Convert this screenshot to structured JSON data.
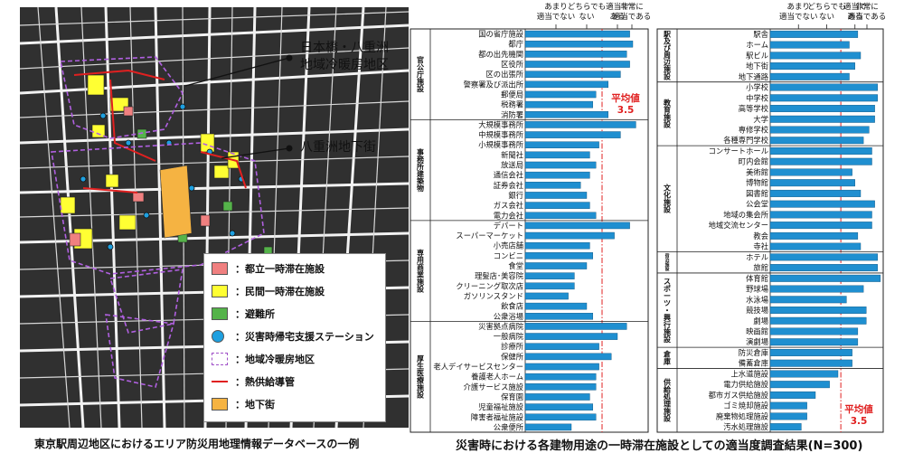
{
  "map": {
    "callouts": [
      "日本橋・八重洲",
      "地域冷暖房地区",
      "八重洲地下街"
    ],
    "legend": [
      {
        "label": "：都立一時滞在施設",
        "color": "#f08080",
        "shape": "box"
      },
      {
        "label": "：民間一時滞在施設",
        "color": "#ffff33",
        "shape": "box"
      },
      {
        "label": "：避難所",
        "color": "#55b34a",
        "shape": "box"
      },
      {
        "label": "：災害時帰宅支援ステーション",
        "color": "#1ea0e0",
        "shape": "circle"
      },
      {
        "label": "：地域冷暖房地区",
        "color": "#a050c8",
        "shape": "dashed-box"
      },
      {
        "label": "：熱供給導管",
        "color": "#e02020",
        "shape": "line"
      },
      {
        "label": "：地下街",
        "color": "#f5b342",
        "shape": "box"
      }
    ],
    "caption": "東京駅周辺地区におけるエリア防災用地理情報データベースの一例"
  },
  "chart_data": {
    "type": "bar",
    "title": "災害時における各建物用途の一時滞在施設としての適当度調査結果(N=300)",
    "scale_labels": [
      "あまり\n適当でない",
      "どちらでも\nない",
      "適当で\nある",
      "非常に\n適当である"
    ],
    "xlim": [
      1,
      5
    ],
    "average": {
      "label": "平均値\n3.5",
      "value": 3.5
    },
    "bar_color": "#1f8fd0",
    "panels": [
      {
        "groups": [
          {
            "name": "官公庁施設",
            "items": [
              [
                "国の省庁施設",
                4.4
              ],
              [
                "都庁",
                4.5
              ],
              [
                "都の出先機関",
                4.3
              ],
              [
                "区役所",
                4.4
              ],
              [
                "区の出張所",
                4.1
              ],
              [
                "警察署及び派出所",
                3.7
              ],
              [
                "郵便局",
                3.3
              ],
              [
                "税務署",
                3.2
              ],
              [
                "消防署",
                3.7
              ]
            ]
          },
          {
            "name": "事務所建築物",
            "items": [
              [
                "大規模事務所",
                4.6
              ],
              [
                "中規模事務所",
                4.1
              ],
              [
                "小規模事務所",
                3.4
              ],
              [
                "新聞社",
                3.1
              ],
              [
                "放送局",
                3.3
              ],
              [
                "通信会社",
                3.1
              ],
              [
                "証券会社",
                2.8
              ],
              [
                "銀行",
                3.0
              ],
              [
                "ガス会社",
                3.1
              ],
              [
                "電力会社",
                3.3
              ]
            ]
          },
          {
            "name": "専用商業施設",
            "items": [
              [
                "デパート",
                4.4
              ],
              [
                "スーパーマーケット",
                3.9
              ],
              [
                "小売店舗",
                3.1
              ],
              [
                "コンビニ",
                3.2
              ],
              [
                "食堂",
                3.0
              ],
              [
                "理髪店･美容院",
                2.6
              ],
              [
                "クリーニング取次店",
                2.6
              ],
              [
                "ガソリンスタンド",
                2.4
              ],
              [
                "飲食店",
                3.0
              ],
              [
                "公衆浴場",
                3.2
              ]
            ]
          },
          {
            "name": "厚生医療施設",
            "items": [
              [
                "災害拠点病院",
                4.3
              ],
              [
                "一般病院",
                4.0
              ],
              [
                "診療所",
                3.4
              ],
              [
                "保健所",
                3.8
              ],
              [
                "老人デイサービスセンター",
                3.4
              ],
              [
                "養護老人ホーム",
                3.3
              ],
              [
                "介護サービス施設",
                3.3
              ],
              [
                "保育園",
                3.1
              ],
              [
                "児童福祉施設",
                3.2
              ],
              [
                "障害者福祉施設",
                3.3
              ],
              [
                "公衆便所",
                2.5
              ]
            ]
          }
        ]
      },
      {
        "groups": [
          {
            "name": "駅及び周辺施設",
            "items": [
              [
                "駅舎",
                4.1
              ],
              [
                "ホーム",
                3.8
              ],
              [
                "駅ビル",
                4.2
              ],
              [
                "地下街",
                4.0
              ],
              [
                "地下通路",
                3.8
              ]
            ]
          },
          {
            "name": "教育施設",
            "items": [
              [
                "小学校",
                4.8
              ],
              [
                "中学校",
                4.8
              ],
              [
                "高等学校",
                4.7
              ],
              [
                "大学",
                4.7
              ],
              [
                "専修学校",
                4.5
              ],
              [
                "各種専門学校",
                4.3
              ]
            ]
          },
          {
            "name": "文化施設",
            "items": [
              [
                "コンサートホール",
                4.6
              ],
              [
                "町内会館",
                4.6
              ],
              [
                "美術館",
                3.9
              ],
              [
                "博物館",
                4.0
              ],
              [
                "図書館",
                4.2
              ],
              [
                "公会堂",
                4.7
              ],
              [
                "地域の集会所",
                4.6
              ],
              [
                "地域交流センター",
                4.6
              ],
              [
                "教会",
                4.1
              ],
              [
                "寺社",
                4.2
              ]
            ]
          },
          {
            "name": "宿泊施設",
            "items": [
              [
                "ホテル",
                4.8
              ],
              [
                "旅館",
                4.8
              ]
            ]
          },
          {
            "name": "スポーツ・興行施設",
            "items": [
              [
                "体育館",
                4.9
              ],
              [
                "野球場",
                4.3
              ],
              [
                "水泳場",
                3.7
              ],
              [
                "競技場",
                4.4
              ],
              [
                "劇場",
                4.4
              ],
              [
                "映画館",
                4.1
              ],
              [
                "演劇場",
                4.1
              ]
            ]
          },
          {
            "name": "倉庫",
            "items": [
              [
                "防災倉庫",
                3.9
              ],
              [
                "備蓄倉庫",
                3.9
              ]
            ]
          },
          {
            "name": "供給処理施設",
            "items": [
              [
                "上水道施設",
                3.4
              ],
              [
                "電力供給施設",
                3.1
              ],
              [
                "都市ガス供給施設",
                2.6
              ],
              [
                "ゴミ焼却施設",
                2.3
              ],
              [
                "廃棄物処理施設",
                2.3
              ],
              [
                "汚水処理施設",
                2.1
              ]
            ]
          }
        ]
      }
    ]
  }
}
